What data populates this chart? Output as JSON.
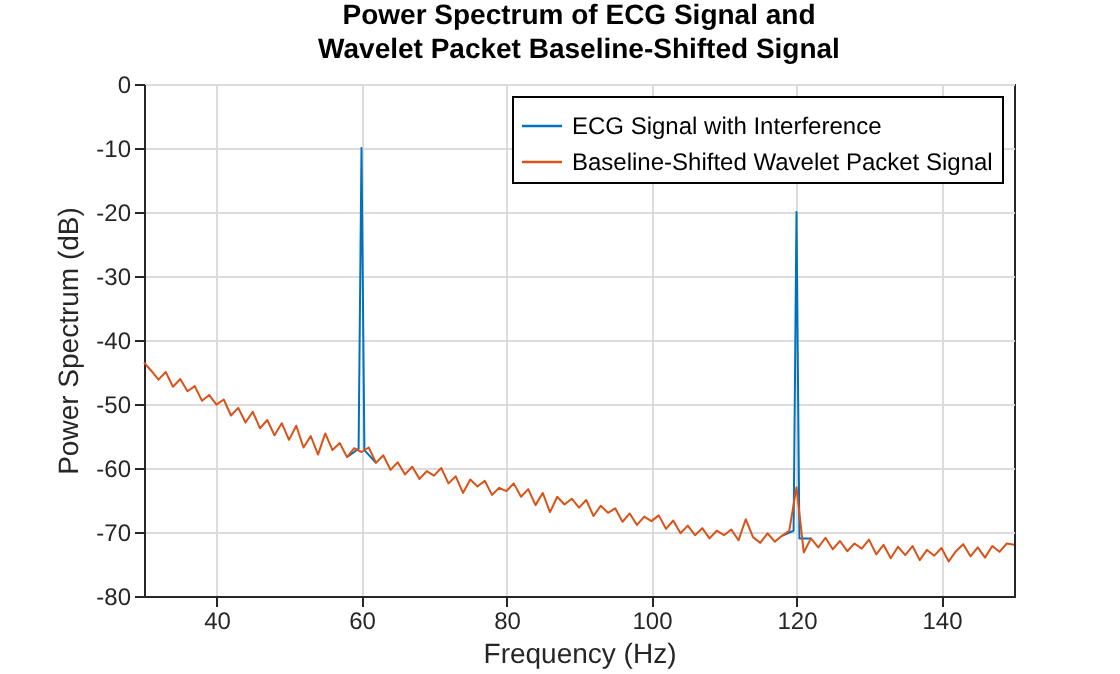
{
  "chart_data": {
    "type": "line",
    "title": "Power Spectrum of ECG Signal and\nWavelet Packet Baseline-Shifted Signal",
    "xlabel": "Frequency (Hz)",
    "ylabel": "Power Spectrum (dB)",
    "xlim": [
      30,
      150
    ],
    "xticks": [
      40,
      60,
      80,
      100,
      120,
      140
    ],
    "ylim": [
      -80,
      0
    ],
    "yticks": [
      -80,
      -70,
      -60,
      -50,
      -40,
      -30,
      -20,
      -10,
      0
    ],
    "grid": true,
    "legend": "top right",
    "line_style": "solid",
    "marker": "none",
    "series": [
      {
        "name": "ECG Signal with Interference",
        "color": "#0072bd",
        "x": [
          58,
          59.6,
          60,
          60.4,
          62,
          90,
          118,
          119.6,
          120,
          120.4,
          122
        ],
        "values": [
          -58.3,
          -57.0,
          -10,
          -57.2,
          -59.2,
          null,
          -70.6,
          -69.8,
          -20,
          -71.0,
          -71.0
        ]
      },
      {
        "name": "Baseline-Shifted Wavelet Packet Signal",
        "color": "#d95319",
        "x": [
          30,
          31,
          32,
          33,
          34,
          35,
          36,
          37,
          38,
          39,
          40,
          41,
          42,
          43,
          44,
          45,
          46,
          47,
          48,
          49,
          50,
          51,
          52,
          53,
          54,
          55,
          56,
          57,
          58,
          59,
          60,
          61,
          62,
          63,
          64,
          65,
          66,
          67,
          68,
          69,
          70,
          71,
          72,
          73,
          74,
          75,
          76,
          77,
          78,
          79,
          80,
          81,
          82,
          83,
          84,
          85,
          86,
          87,
          88,
          89,
          90,
          91,
          92,
          93,
          94,
          95,
          96,
          97,
          98,
          99,
          100,
          101,
          102,
          103,
          104,
          105,
          106,
          107,
          108,
          109,
          110,
          111,
          112,
          113,
          114,
          115,
          116,
          117,
          118,
          119,
          120,
          121,
          122,
          123,
          124,
          125,
          126,
          127,
          128,
          129,
          130,
          131,
          132,
          133,
          134,
          135,
          136,
          137,
          138,
          139,
          140,
          141,
          142,
          143,
          144,
          145,
          146,
          147,
          148,
          149,
          150
        ],
        "values": [
          -43.5,
          -44.8,
          -46.2,
          -45.0,
          -47.3,
          -46.1,
          -48.0,
          -47.2,
          -49.5,
          -48.6,
          -50.1,
          -49.3,
          -51.8,
          -50.6,
          -52.9,
          -51.2,
          -53.8,
          -52.5,
          -54.9,
          -53.0,
          -55.6,
          -53.4,
          -56.8,
          -55.0,
          -57.9,
          -54.6,
          -57.2,
          -56.1,
          -58.3,
          -56.9,
          -57.5,
          -56.8,
          -59.2,
          -58.0,
          -60.3,
          -59.1,
          -61.0,
          -59.8,
          -61.7,
          -60.5,
          -61.2,
          -60.0,
          -62.4,
          -61.3,
          -63.9,
          -61.8,
          -62.9,
          -62.0,
          -64.2,
          -63.1,
          -63.6,
          -62.4,
          -64.5,
          -63.3,
          -65.8,
          -63.9,
          -66.9,
          -64.5,
          -65.7,
          -64.8,
          -66.2,
          -65.0,
          -67.5,
          -65.9,
          -67.0,
          -66.3,
          -68.4,
          -67.1,
          -68.9,
          -67.6,
          -68.3,
          -67.4,
          -69.5,
          -68.2,
          -70.2,
          -69.0,
          -70.5,
          -69.4,
          -71.0,
          -69.8,
          -70.5,
          -69.6,
          -71.3,
          -68.0,
          -70.8,
          -71.7,
          -70.2,
          -71.5,
          -70.6,
          -69.8,
          -63.0,
          -73.2,
          -71.0,
          -72.4,
          -70.9,
          -72.7,
          -71.4,
          -73.0,
          -71.8,
          -72.6,
          -71.2,
          -73.5,
          -72.0,
          -74.1,
          -72.3,
          -73.6,
          -72.2,
          -74.4,
          -72.8,
          -73.7,
          -72.5,
          -74.6,
          -73.0,
          -71.9,
          -73.8,
          -72.4,
          -74.0,
          -72.2,
          -73.1,
          -71.8,
          -72.0
        ]
      }
    ]
  }
}
